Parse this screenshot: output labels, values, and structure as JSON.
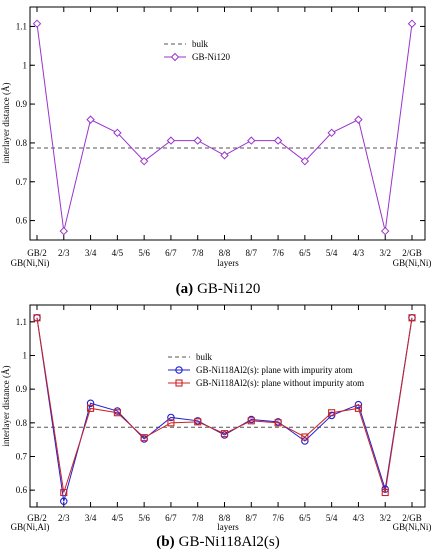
{
  "chart_data": [
    {
      "type": "line",
      "caption_label": "(a)",
      "caption": "GB-Ni120",
      "xlabel": "layers",
      "ylabel": "interlayer distance (Å)",
      "ylim": [
        0.55,
        1.15
      ],
      "yticks": [
        0.6,
        0.7,
        0.8,
        0.9,
        1.0,
        1.1
      ],
      "ytick_labels": [
        "0.6",
        "0.7",
        "0.8",
        "0.9",
        "1",
        "1.1"
      ],
      "categories": [
        "GB/2",
        "2/3",
        "3/4",
        "4/5",
        "5/6",
        "6/7",
        "7/8",
        "8/8",
        "8/7",
        "7/6",
        "6/5",
        "5/4",
        "4/3",
        "3/2",
        "2/GB"
      ],
      "end_labels": [
        "GB(Ni,Ni)",
        "GB(Ni,Ni)"
      ],
      "grid": false,
      "legend_position": "upper-center",
      "reference": {
        "name": "bulk",
        "value": 0.787,
        "color": "#555555"
      },
      "series": [
        {
          "name": "GB-Ni120",
          "color": "#9933cc",
          "marker": "diamond",
          "values": [
            1.107,
            0.573,
            0.86,
            0.826,
            0.753,
            0.806,
            0.806,
            0.768,
            0.806,
            0.806,
            0.753,
            0.826,
            0.86,
            0.573,
            1.107
          ]
        }
      ]
    },
    {
      "type": "line",
      "caption_label": "(b)",
      "caption": "GB-Ni118Al2(s)",
      "xlabel": "layers",
      "ylabel": "interlayer distance (Å)",
      "ylim": [
        0.55,
        1.15
      ],
      "yticks": [
        0.6,
        0.7,
        0.8,
        0.9,
        1.0,
        1.1
      ],
      "ytick_labels": [
        "0.6",
        "0.7",
        "0.8",
        "0.9",
        "1",
        "1.1"
      ],
      "categories": [
        "GB/2",
        "2/3",
        "3/4",
        "4/5",
        "5/6",
        "6/7",
        "7/8",
        "8/8",
        "8/7",
        "7/6",
        "6/5",
        "5/4",
        "4/3",
        "3/2",
        "2/GB"
      ],
      "end_labels": [
        "GB(Ni,Al)",
        "GB(Ni,Ni)"
      ],
      "grid": false,
      "legend_position": "center",
      "reference": {
        "name": "bulk",
        "value": 0.787,
        "color": "#555555"
      },
      "series": [
        {
          "name": "GB-Ni118Al2(s): plane with impurity atom",
          "color": "#1f1fd6",
          "marker": "circle",
          "values": [
            1.112,
            0.567,
            0.858,
            0.835,
            0.752,
            0.816,
            0.806,
            0.764,
            0.81,
            0.803,
            0.746,
            0.822,
            0.854,
            0.603,
            1.112
          ]
        },
        {
          "name": "GB-Ni118Al2(s): plane without impurity atom",
          "color": "#cc2222",
          "marker": "square",
          "values": [
            1.112,
            0.593,
            0.843,
            0.83,
            0.756,
            0.8,
            0.803,
            0.768,
            0.806,
            0.8,
            0.758,
            0.83,
            0.843,
            0.593,
            1.112
          ]
        }
      ]
    }
  ]
}
